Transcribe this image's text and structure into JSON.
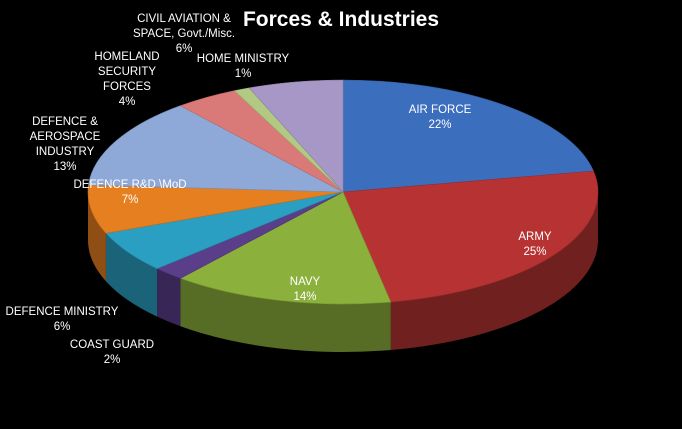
{
  "chart_data": {
    "type": "pie3d",
    "title": "Forces & Industries",
    "categories": [
      "AIR FORCE",
      "ARMY",
      "NAVY",
      "COAST GUARD",
      "DEFENCE MINISTRY",
      "DEFENCE R&D \\MoD",
      "DEFENCE & AEROSPACE INDUSTRY",
      "HOMELAND SECURITY FORCES",
      "HOME MINISTRY",
      "CIVIL AVIATION & SPACE, Govt./Misc."
    ],
    "values": [
      22,
      25,
      14,
      2,
      6,
      7,
      13,
      4,
      1,
      6
    ],
    "value_labels": [
      "22%",
      "25%",
      "14%",
      "2%",
      "6%",
      "7%",
      "13%",
      "4%",
      "1%",
      "6%"
    ],
    "colors": [
      "#3b6ebd",
      "#b73333",
      "#8cb03c",
      "#5a3e8a",
      "#2a9fc2",
      "#e67f20",
      "#8ea9d8",
      "#d97a78",
      "#b2c983",
      "#a797c6"
    ]
  }
}
